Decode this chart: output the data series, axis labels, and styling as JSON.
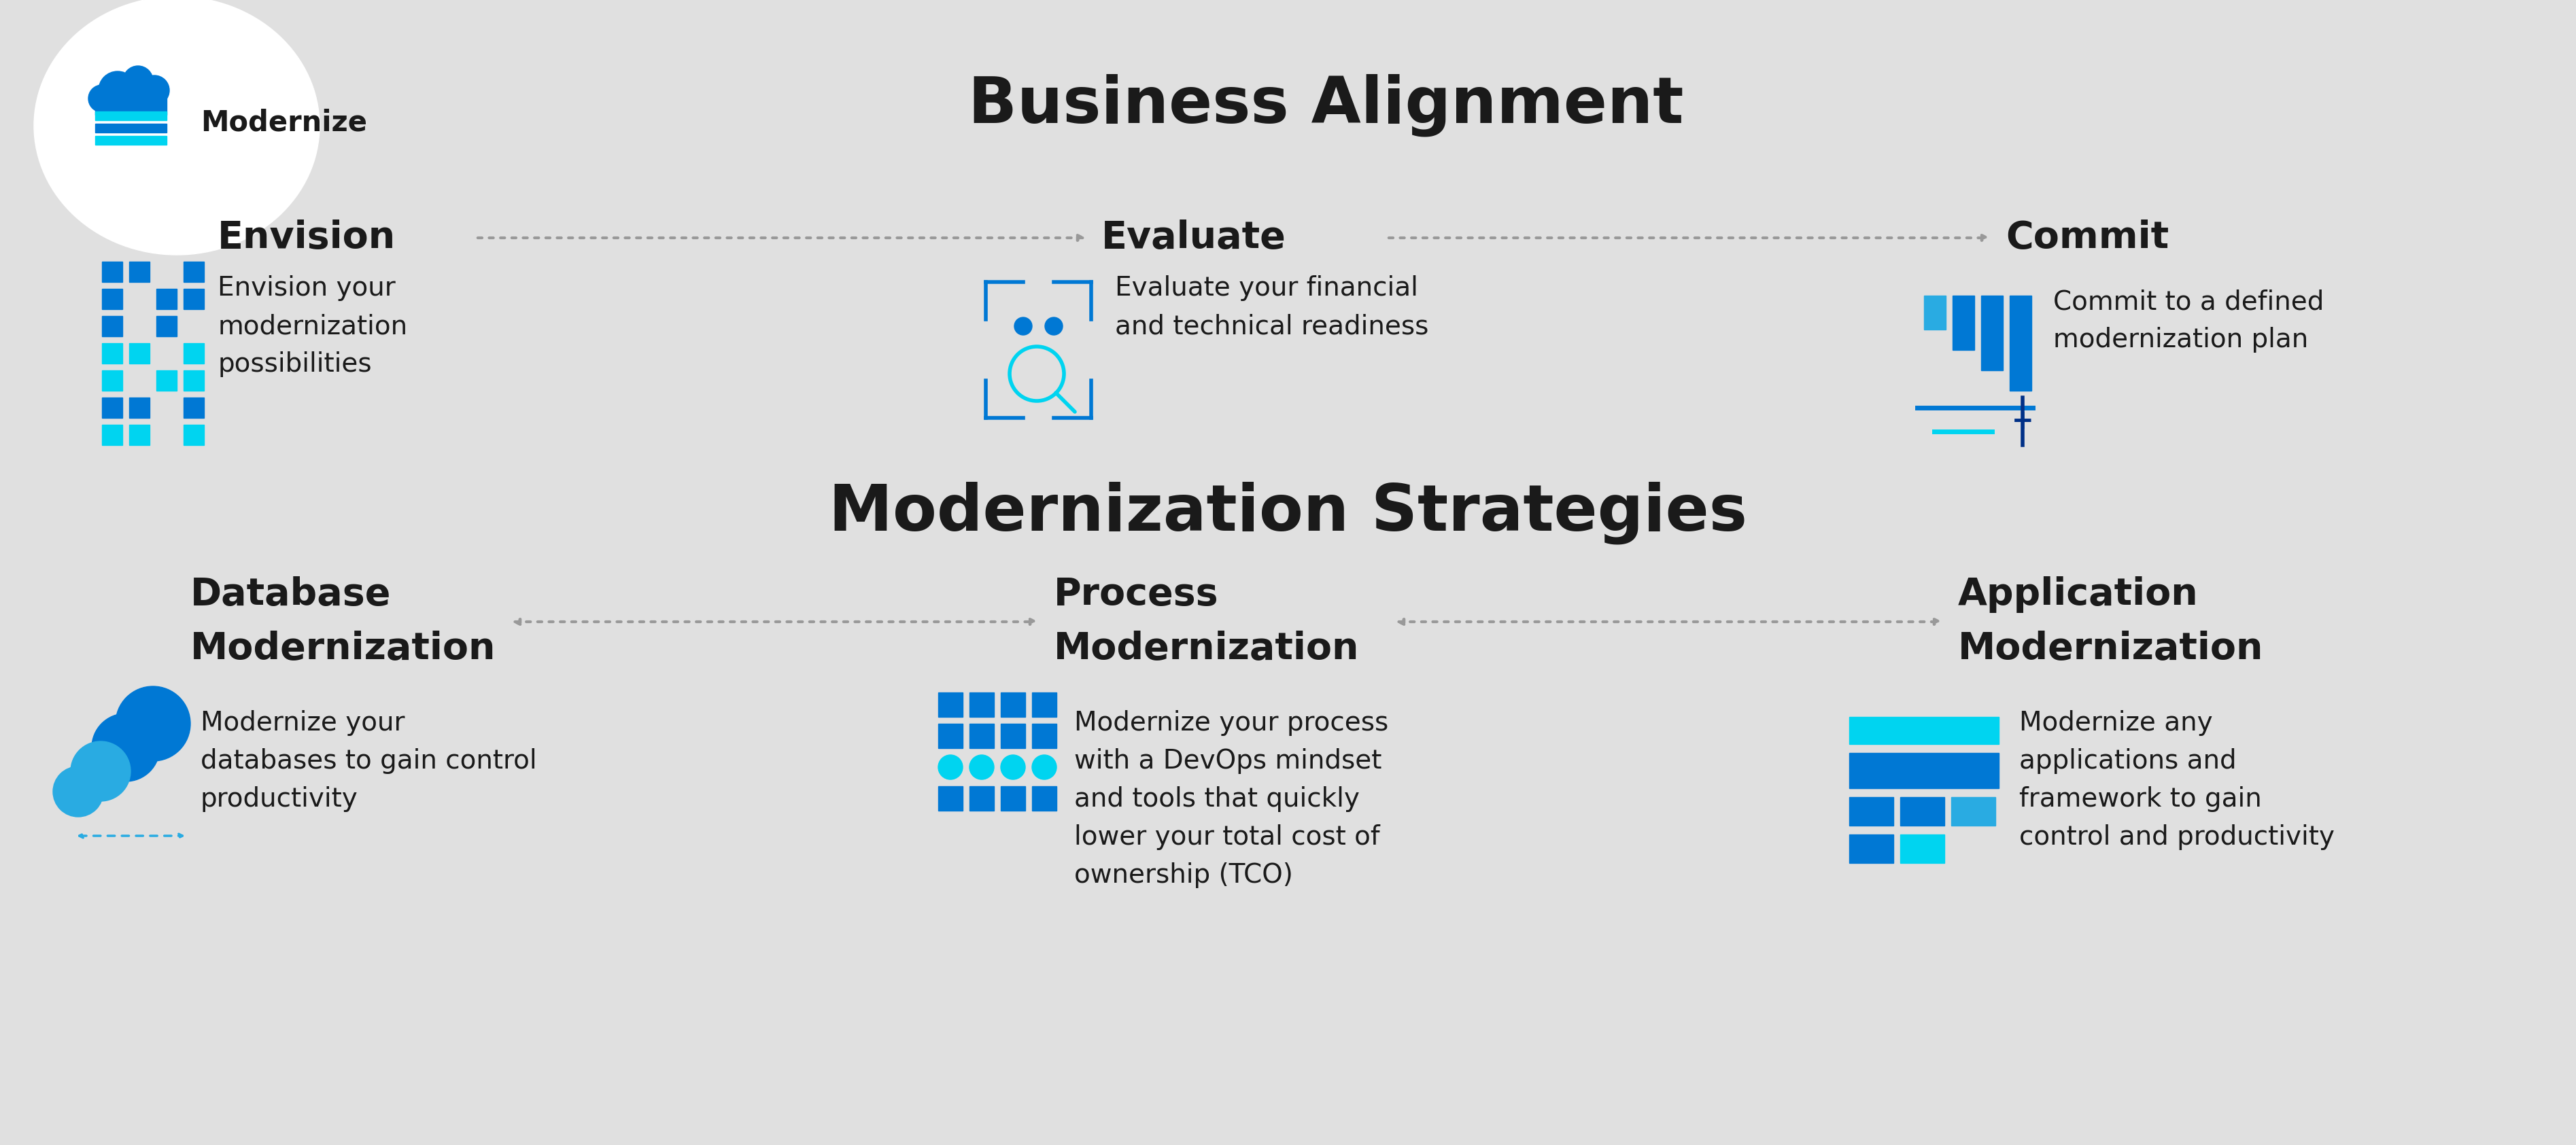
{
  "bg_color": "#e0e0e0",
  "white_color": "#ffffff",
  "dark_blue": "#003087",
  "mid_blue": "#0078d4",
  "light_blue": "#29abe2",
  "cyan_blue": "#00d4f0",
  "dark_text": "#1a1a1a",
  "arrow_color": "#999999",
  "main_title": "Business Alignment",
  "section2_title": "Modernization Strategies",
  "top_labels": [
    "Envision",
    "Evaluate",
    "Commit"
  ],
  "top_descriptions": [
    "Envision your\nmodernization\npossibilities",
    "Evaluate your financial\nand technical readiness",
    "Commit to a defined\nmodernization plan"
  ],
  "bottom_labels_line1": [
    "Database",
    "Process",
    "Application"
  ],
  "bottom_labels_line2": [
    "Modernization",
    "Modernization",
    "Modernization"
  ],
  "bottom_descriptions": [
    "Modernize your\ndatabases to gain control\nproductivity",
    "Modernize your process\nwith a DevOps mindset\nand tools that quickly\nlower your total cost of\nownership (TCO)",
    "Modernize any\napplications and\nframework to gain\ncontrol and productivity"
  ]
}
